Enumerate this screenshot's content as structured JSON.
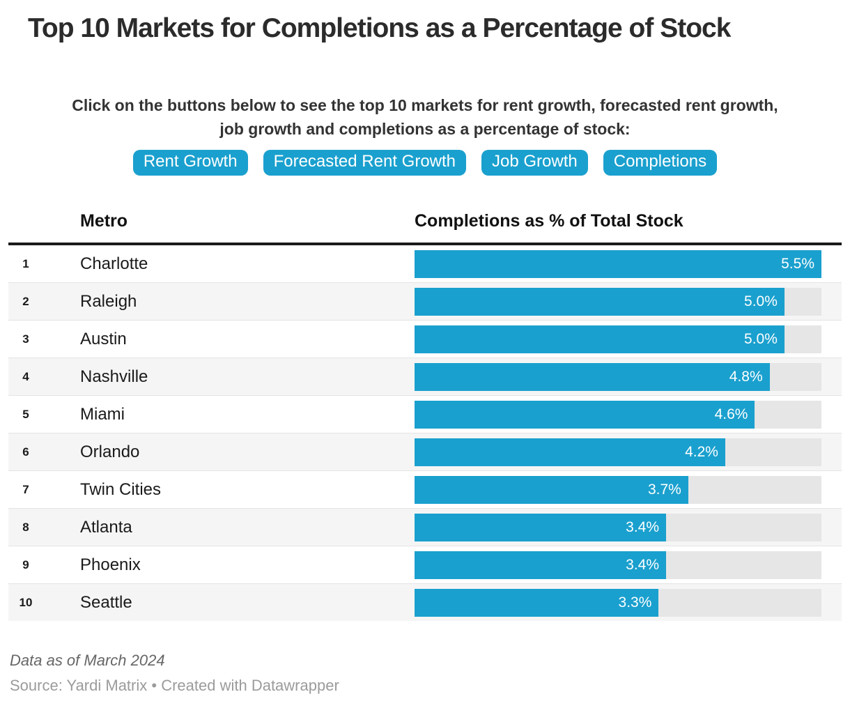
{
  "title": "Top 10 Markets for Completions as a Percentage of Stock",
  "description": {
    "line1": "Click on the buttons below to see the top 10 markets for rent growth, forecasted rent growth,",
    "line2": "job growth and completions as a percentage of stock:"
  },
  "buttons": [
    {
      "label": "Rent Growth"
    },
    {
      "label": "Forecasted Rent Growth"
    },
    {
      "label": "Job Growth"
    },
    {
      "label": "Completions"
    }
  ],
  "table": {
    "metro_header": "Metro",
    "value_header": "Completions as % of Total Stock"
  },
  "chart_data": {
    "type": "bar",
    "title": "Top 10 Markets for Completions as a Percentage of Stock",
    "orientation": "horizontal",
    "categories": [
      "Charlotte",
      "Raleigh",
      "Austin",
      "Nashville",
      "Miami",
      "Orlando",
      "Twin Cities",
      "Atlanta",
      "Phoenix",
      "Seattle"
    ],
    "ranks": [
      "1",
      "2",
      "3",
      "4",
      "5",
      "6",
      "7",
      "8",
      "9",
      "10"
    ],
    "values": [
      5.5,
      5.0,
      5.0,
      4.8,
      4.6,
      4.2,
      3.7,
      3.4,
      3.4,
      3.3
    ],
    "labels": [
      "5.5%",
      "5.0%",
      "5.0%",
      "4.8%",
      "4.6%",
      "4.2%",
      "3.7%",
      "3.4%",
      "3.4%",
      "3.3%"
    ],
    "xlabel": "",
    "ylabel": "Completions as % of Total Stock",
    "xmax": 5.5,
    "grid": "off",
    "legend": "none",
    "bar_color": "#1aa0ce",
    "track_color": "#e6e6e6"
  },
  "footer": {
    "note": "Data as of March 2024",
    "source_prefix": "Source: Yardi Matrix",
    "separator": " • ",
    "credit": "Created with Datawrapper"
  },
  "colors": {
    "accent_blue": "#1aa0ce",
    "track_gray": "#e6e6e6",
    "stripe_gray": "#f5f5f5",
    "rule_dark": "#1a1a1a"
  }
}
